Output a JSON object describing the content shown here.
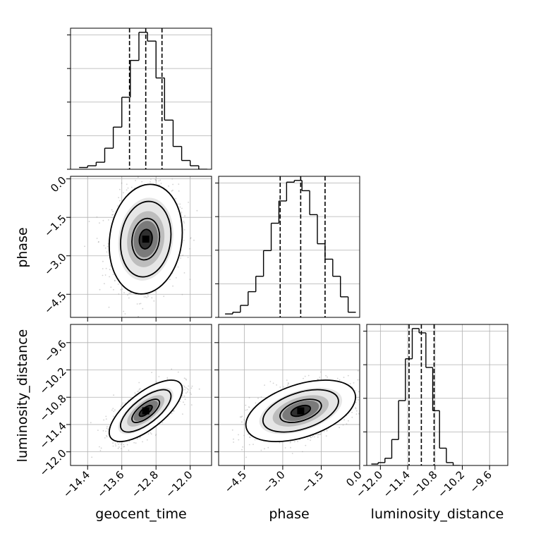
{
  "chart_data": {
    "type": "corner",
    "parameters": [
      "geocent_time",
      "phase",
      "luminosity_distance"
    ],
    "grid": true,
    "histograms": [
      {
        "param": "geocent_time",
        "xlim": [
          -14.8,
          -11.5
        ],
        "bin_edges": [
          -14.6,
          -14.4,
          -14.2,
          -14.0,
          -13.8,
          -13.6,
          -13.4,
          -13.2,
          -13.0,
          -12.8,
          -12.6,
          -12.4,
          -12.2,
          -12.0,
          -11.8,
          -11.6
        ],
        "counts": [
          1,
          2,
          4,
          12,
          24,
          41,
          62,
          78,
          73,
          52,
          28,
          13,
          5,
          2,
          0
        ],
        "quantiles": [
          -13.42,
          -13.04,
          -12.66
        ],
        "xticks": [],
        "xtick_labels": []
      },
      {
        "param": "phase",
        "xlim": [
          -5.5,
          0.0
        ],
        "bin_edges": [
          -5.25,
          -4.95,
          -4.65,
          -4.35,
          -4.05,
          -3.75,
          -3.45,
          -3.15,
          -2.85,
          -2.55,
          -2.25,
          -1.95,
          -1.65,
          -1.35,
          -1.05,
          -0.75,
          -0.45,
          -0.15
        ],
        "counts": [
          2,
          3,
          7,
          15,
          24,
          39,
          55,
          68,
          79,
          80,
          74,
          60,
          43,
          34,
          24,
          12,
          3
        ],
        "quantiles": [
          -3.1,
          -2.3,
          -1.35
        ],
        "xticks": [],
        "xtick_labels": []
      },
      {
        "param": "luminosity_distance",
        "xlim": [
          -12.3,
          -9.2
        ],
        "bin_edges": [
          -12.2,
          -12.05,
          -11.9,
          -11.75,
          -11.6,
          -11.45,
          -11.3,
          -11.15,
          -11.0,
          -10.85,
          -10.7,
          -10.55,
          -10.4,
          -10.25
        ],
        "counts": [
          1,
          2,
          5,
          18,
          45,
          74,
          95,
          92,
          68,
          38,
          12,
          2,
          0
        ],
        "quantiles": [
          -11.37,
          -11.1,
          -10.82
        ],
        "xticks": [
          -12.0,
          -11.4,
          -10.8,
          -10.2,
          -9.6
        ],
        "xtick_labels": [
          "−12.0",
          "−11.4",
          "−10.8",
          "−10.2",
          "−9.6"
        ]
      }
    ],
    "pair_plots": [
      {
        "x_param": "geocent_time",
        "y_param": "phase",
        "xlim": [
          -14.8,
          -11.5
        ],
        "ylim": [
          -5.4,
          0.1
        ],
        "mean": [
          -13.04,
          -2.35
        ],
        "std": [
          0.38,
          0.95
        ],
        "rho": 0.12,
        "xticks": [
          -14.4,
          -13.6,
          -12.8,
          -12.0
        ],
        "yticks": [
          -4.5,
          -3.0,
          -1.5,
          0.0
        ],
        "ytick_labels": [
          "−4.5",
          "−3.0",
          "−1.5",
          "0.0"
        ]
      },
      {
        "x_param": "geocent_time",
        "y_param": "luminosity_distance",
        "xlim": [
          -14.8,
          -11.5
        ],
        "ylim": [
          -12.3,
          -9.2
        ],
        "mean": [
          -13.04,
          -11.1
        ],
        "std": [
          0.38,
          0.3
        ],
        "rho": 0.7,
        "xticks": [
          -14.4,
          -13.6,
          -12.8,
          -12.0
        ],
        "xtick_labels": [
          "−14.4",
          "−13.6",
          "−12.8",
          "−12.0"
        ],
        "yticks": [
          -12.0,
          -11.4,
          -10.8,
          -10.2,
          -9.6
        ],
        "ytick_labels": [
          "−12.0",
          "−11.4",
          "−10.8",
          "−10.2",
          "−9.6"
        ]
      },
      {
        "x_param": "phase",
        "y_param": "luminosity_distance",
        "xlim": [
          -5.5,
          0.0
        ],
        "ylim": [
          -12.3,
          -9.2
        ],
        "mean": [
          -2.3,
          -11.1
        ],
        "std": [
          0.95,
          0.3
        ],
        "rho": 0.45,
        "xticks": [
          -4.5,
          -3.0,
          -1.5,
          0.0
        ],
        "xtick_labels": [
          "−4.5",
          "−3.0",
          "−1.5",
          "0.0"
        ],
        "yticks": [
          -12.0,
          -11.4,
          -10.8,
          -10.2,
          -9.6
        ]
      }
    ],
    "xlabels": [
      "geocent_time",
      "phase",
      "luminosity_distance"
    ],
    "ylabels": [
      "phase",
      "luminosity_distance"
    ],
    "colors": {
      "line": "#000000",
      "grid": "#b0b0b0",
      "scatter": "#9a9a9a"
    }
  }
}
